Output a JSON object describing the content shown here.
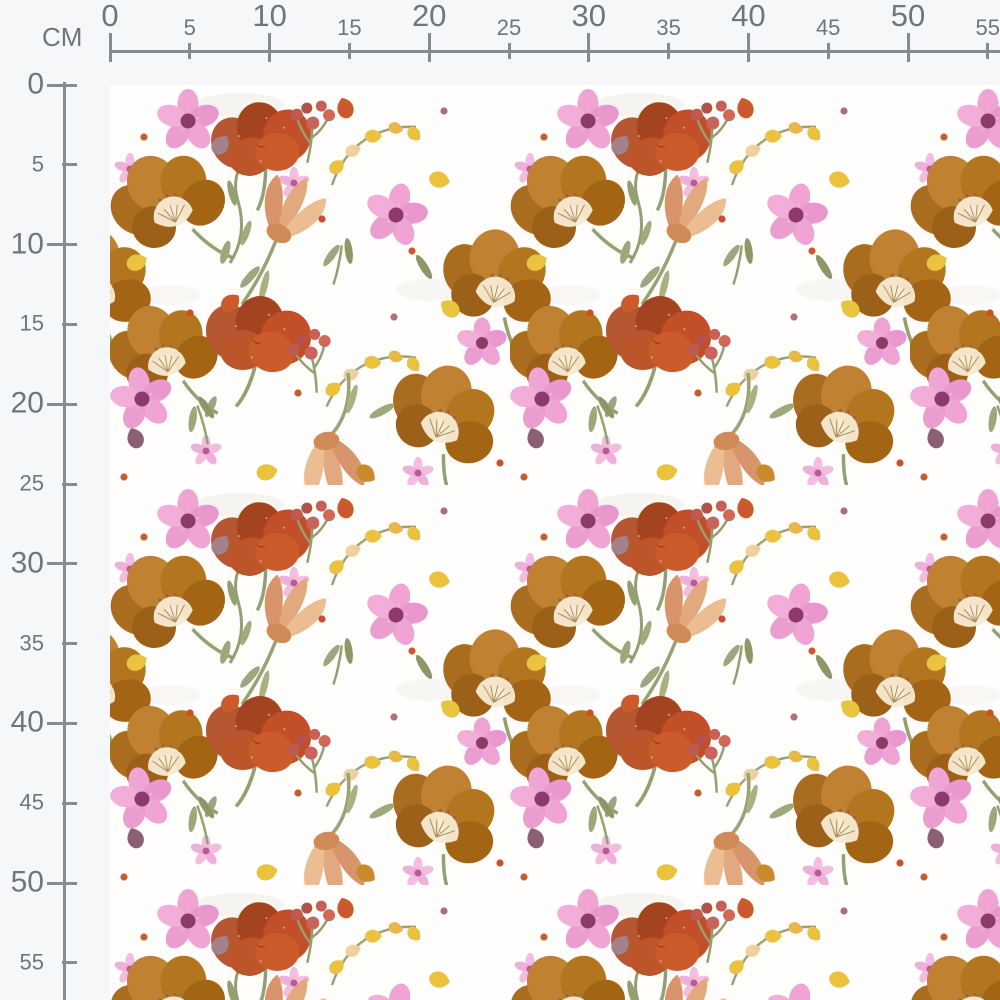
{
  "page": {
    "background_color": "#f5f7f8",
    "description": "Fabric pattern preview with centimeter rulers along the top and left edges"
  },
  "ruler": {
    "unit_label": "CM",
    "top_values": [
      0,
      5,
      10,
      15,
      20,
      25,
      30,
      35,
      40,
      45,
      50,
      55
    ],
    "left_values": [
      0,
      5,
      10,
      15,
      20,
      25,
      30,
      35,
      40,
      45,
      50,
      55
    ],
    "line_color": "#838c93",
    "label_color": "#6e767d"
  },
  "swatch": {
    "type": "fabric-pattern-preview",
    "style": "watercolor wildflower repeat on white ground",
    "background_color": "#fffefd",
    "motifs": [
      "mustard-anemone",
      "rust-poppy",
      "peach-tulip",
      "pink-blossom",
      "tiny-pink-star",
      "berry-sprig",
      "yellow-bud-sprig",
      "paisley-teardrop",
      "seed-dot",
      "sage-leaves"
    ],
    "palette": {
      "mustard": "#b3761f",
      "mustard_light": "#c18132",
      "rust": "#bc5430",
      "rust_deep": "#a3431f",
      "peach": "#e2a97e",
      "peach_light": "#ecbc93",
      "pink": "#efa4d3",
      "pink_pale": "#f4bce0",
      "magenta_center": "#8e3a68",
      "berry_red": "#c9655c",
      "bud_yellow": "#eac23e",
      "mauve": "#a2808d",
      "plum": "#8c5f72",
      "sage_green": "#93a06f",
      "sage_light": "#9aa87a",
      "dot_orange": "#cc5a2d",
      "center_cream": "#f6ead2"
    }
  }
}
